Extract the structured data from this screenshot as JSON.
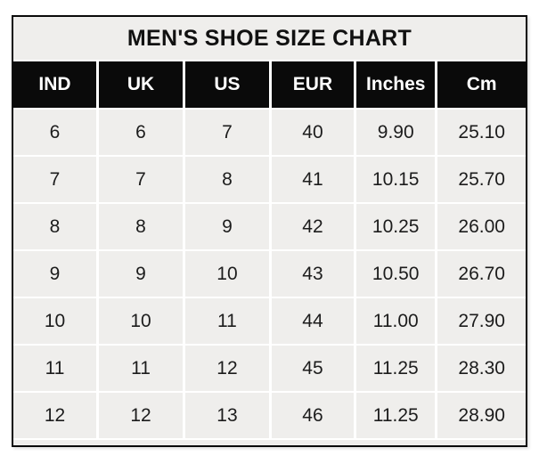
{
  "chart_data": {
    "type": "table",
    "title": "MEN'S SHOE SIZE CHART",
    "columns": [
      "IND",
      "UK",
      "US",
      "EUR",
      "Inches",
      "Cm"
    ],
    "rows": [
      [
        "6",
        "6",
        "7",
        "40",
        "9.90",
        "25.10"
      ],
      [
        "7",
        "7",
        "8",
        "41",
        "10.15",
        "25.70"
      ],
      [
        "8",
        "8",
        "9",
        "42",
        "10.25",
        "26.00"
      ],
      [
        "9",
        "9",
        "10",
        "43",
        "10.50",
        "26.70"
      ],
      [
        "10",
        "10",
        "11",
        "44",
        "11.00",
        "27.90"
      ],
      [
        "11",
        "11",
        "12",
        "45",
        "11.25",
        "28.30"
      ],
      [
        "12",
        "12",
        "13",
        "46",
        "11.25",
        "28.90"
      ]
    ],
    "layout": {
      "header_position": "top",
      "grid": "on",
      "legend": "none"
    }
  },
  "colors": {
    "title_bg": "#efeeec",
    "header_bg": "#0a0a0a",
    "header_text": "#ffffff",
    "cell_bg": "#efeeec",
    "cell_text": "#1c1c1c",
    "separator": "#ffffff",
    "border": "#0a0a0a",
    "page_bg": "#ffffff"
  }
}
